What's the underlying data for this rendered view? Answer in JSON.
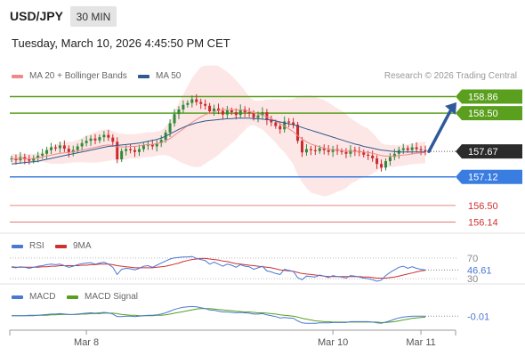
{
  "header": {
    "symbol": "USD/JPY",
    "interval": "30 MIN",
    "datetime": "Tuesday, March 10, 2026 4:45:50 PM CET"
  },
  "legend": {
    "ma20": "MA 20 + Bollinger Bands",
    "ma50": "MA 50",
    "credit": "Research © 2026 Trading Central"
  },
  "colors": {
    "resistance": "#5aa01e",
    "support": "#3a7de0",
    "target": "#e06060",
    "up_candle": "#2f8a3a",
    "down_candle": "#cc2a2a",
    "ma20": "#f08a8a",
    "ma50": "#2f5a8f",
    "bollinger_fill": "#fde2e2",
    "rsi": "#4a78d4",
    "rsi_ma": "#d03030",
    "macd": "#4a78d4",
    "macd_signal": "#56a01e",
    "current": "#333333",
    "arrow": "#2f5a9a"
  },
  "chart_data": [
    {
      "type": "candlestick",
      "name": "price",
      "ylim": [
        155.9,
        159.1
      ],
      "x_ticks": [
        "Mar 8",
        "Mar 10",
        "Mar 11"
      ],
      "levels": [
        {
          "value": 158.86,
          "label": "158.86",
          "kind": "resistance"
        },
        {
          "value": 158.5,
          "label": "158.50",
          "kind": "resistance"
        },
        {
          "value": 157.67,
          "label": "157.67",
          "kind": "current"
        },
        {
          "value": 157.12,
          "label": "157.12",
          "kind": "support"
        },
        {
          "value": 156.5,
          "label": "156.50",
          "kind": "target"
        },
        {
          "value": 156.14,
          "label": "156.14",
          "kind": "target"
        }
      ],
      "close": [
        157.52,
        157.48,
        157.55,
        157.5,
        157.47,
        157.53,
        157.58,
        157.62,
        157.7,
        157.76,
        157.74,
        157.8,
        157.73,
        157.65,
        157.7,
        157.78,
        157.85,
        157.9,
        157.95,
        157.91,
        157.98,
        158.03,
        157.97,
        157.88,
        157.5,
        157.68,
        157.72,
        157.7,
        157.66,
        157.72,
        157.8,
        157.82,
        157.78,
        157.85,
        157.92,
        158.08,
        158.28,
        158.48,
        158.58,
        158.68,
        158.72,
        158.8,
        158.74,
        158.7,
        158.66,
        158.54,
        158.6,
        158.55,
        158.47,
        158.56,
        158.52,
        158.46,
        158.58,
        158.52,
        158.5,
        158.4,
        158.45,
        158.52,
        158.35,
        158.3,
        158.22,
        158.15,
        158.32,
        158.3,
        158.25,
        157.9,
        157.65,
        157.72,
        157.7,
        157.68,
        157.74,
        157.7,
        157.66,
        157.72,
        157.68,
        157.66,
        157.62,
        157.7,
        157.68,
        157.65,
        157.6,
        157.58,
        157.52,
        157.4,
        157.32,
        157.46,
        157.55,
        157.62,
        157.7,
        157.74,
        157.7,
        157.76,
        157.72,
        157.7,
        157.67
      ],
      "ma20": [
        157.52,
        157.51,
        157.52,
        157.52,
        157.51,
        157.52,
        157.53,
        157.55,
        157.57,
        157.59,
        157.61,
        157.63,
        157.64,
        157.65,
        157.66,
        157.68,
        157.7,
        157.72,
        157.74,
        157.76,
        157.78,
        157.8,
        157.81,
        157.8,
        157.77,
        157.77,
        157.77,
        157.78,
        157.78,
        157.79,
        157.81,
        157.82,
        157.82,
        157.84,
        157.86,
        157.9,
        157.95,
        158.02,
        158.09,
        158.16,
        158.23,
        158.3,
        158.36,
        158.42,
        158.47,
        158.5,
        158.53,
        158.56,
        158.57,
        158.58,
        158.58,
        158.57,
        158.57,
        158.56,
        158.54,
        158.51,
        158.48,
        158.46,
        158.42,
        158.38,
        158.33,
        158.27,
        158.22,
        158.16,
        158.1,
        158.01,
        157.94,
        157.88,
        157.83,
        157.8,
        157.77,
        157.74,
        157.72,
        157.71,
        157.7,
        157.69,
        157.68,
        157.68,
        157.67,
        157.67,
        157.66,
        157.65,
        157.63,
        157.61,
        157.58,
        157.57,
        157.57,
        157.57,
        157.58,
        157.59,
        157.6,
        157.62,
        157.63,
        157.64,
        157.65
      ],
      "ma50": [
        157.4,
        157.41,
        157.42,
        157.43,
        157.44,
        157.45,
        157.46,
        157.48,
        157.5,
        157.52,
        157.54,
        157.56,
        157.58,
        157.6,
        157.62,
        157.64,
        157.66,
        157.68,
        157.7,
        157.72,
        157.74,
        157.76,
        157.78,
        157.79,
        157.8,
        157.81,
        157.82,
        157.83,
        157.84,
        157.85,
        157.87,
        157.89,
        157.91,
        157.93,
        157.96,
        158.0,
        158.05,
        158.1,
        158.15,
        158.19,
        158.23,
        158.26,
        158.29,
        158.31,
        158.33,
        158.34,
        158.35,
        158.36,
        158.37,
        158.38,
        158.38,
        158.39,
        158.39,
        158.39,
        158.39,
        158.38,
        158.38,
        158.37,
        158.36,
        158.35,
        158.33,
        158.31,
        158.29,
        158.27,
        158.25,
        158.22,
        158.19,
        158.16,
        158.13,
        158.1,
        158.07,
        158.04,
        158.01,
        157.98,
        157.95,
        157.92,
        157.89,
        157.86,
        157.83,
        157.81,
        157.78,
        157.76,
        157.74,
        157.72,
        157.7,
        157.69,
        157.68,
        157.67,
        157.66,
        157.66,
        157.66,
        157.66,
        157.66,
        157.66,
        157.66
      ]
    },
    {
      "type": "line",
      "name": "RSI",
      "legend": [
        "RSI",
        "9MA"
      ],
      "ylim": [
        25,
        80
      ],
      "y_ticks": [
        {
          "value": 70,
          "label": "70"
        },
        {
          "value": 30,
          "label": "30"
        }
      ],
      "last_value": "46.61",
      "series": [
        {
          "name": "RSI",
          "values": [
            52,
            51,
            53,
            52,
            50,
            52,
            54,
            55,
            57,
            58,
            57,
            58,
            55,
            52,
            54,
            57,
            59,
            60,
            61,
            58,
            60,
            62,
            58,
            52,
            38,
            48,
            50,
            49,
            47,
            50,
            54,
            55,
            52,
            56,
            60,
            64,
            68,
            70,
            71,
            72,
            72,
            73,
            69,
            67,
            65,
            58,
            62,
            58,
            54,
            58,
            56,
            52,
            57,
            54,
            53,
            48,
            51,
            54,
            45,
            43,
            40,
            38,
            48,
            46,
            44,
            32,
            28,
            35,
            34,
            33,
            37,
            35,
            32,
            36,
            34,
            33,
            31,
            36,
            35,
            33,
            31,
            30,
            28,
            25,
            27,
            36,
            42,
            47,
            52,
            54,
            50,
            53,
            50,
            48,
            46.61
          ]
        },
        {
          "name": "9MA",
          "values": [
            53,
            52,
            52,
            52,
            52,
            52,
            52,
            53,
            53,
            54,
            54,
            55,
            55,
            55,
            55,
            55,
            56,
            56,
            57,
            57,
            58,
            58,
            58,
            57,
            55,
            54,
            53,
            52,
            51,
            51,
            51,
            51,
            51,
            52,
            53,
            54,
            56,
            58,
            60,
            63,
            65,
            67,
            68,
            69,
            69,
            68,
            67,
            66,
            64,
            63,
            61,
            59,
            58,
            57,
            56,
            55,
            54,
            53,
            52,
            51,
            49,
            47,
            46,
            45,
            44,
            42,
            40,
            39,
            38,
            37,
            36,
            35,
            34,
            34,
            34,
            34,
            34,
            34,
            34,
            34,
            33,
            33,
            32,
            31,
            31,
            31,
            32,
            33,
            35,
            37,
            39,
            41,
            43,
            45,
            46
          ]
        }
      ]
    },
    {
      "type": "line",
      "name": "MACD",
      "legend": [
        "MACD",
        "MACD Signal"
      ],
      "ylim": [
        -0.3,
        0.27
      ],
      "last_value": "-0.01",
      "series": [
        {
          "name": "MACD",
          "values": [
            0.0,
            0.0,
            0.0,
            0.0,
            0.01,
            0.01,
            0.01,
            0.02,
            0.03,
            0.04,
            0.04,
            0.05,
            0.04,
            0.03,
            0.03,
            0.04,
            0.05,
            0.06,
            0.07,
            0.06,
            0.07,
            0.08,
            0.07,
            0.04,
            -0.02,
            -0.02,
            -0.01,
            -0.01,
            -0.02,
            -0.01,
            0.0,
            0.01,
            0.01,
            0.02,
            0.04,
            0.07,
            0.11,
            0.15,
            0.18,
            0.2,
            0.21,
            0.22,
            0.21,
            0.19,
            0.17,
            0.14,
            0.13,
            0.11,
            0.09,
            0.09,
            0.08,
            0.07,
            0.08,
            0.07,
            0.06,
            0.04,
            0.04,
            0.05,
            0.02,
            0.0,
            -0.02,
            -0.05,
            -0.04,
            -0.05,
            -0.06,
            -0.12,
            -0.17,
            -0.18,
            -0.18,
            -0.18,
            -0.17,
            -0.17,
            -0.17,
            -0.16,
            -0.16,
            -0.16,
            -0.16,
            -0.14,
            -0.14,
            -0.14,
            -0.14,
            -0.14,
            -0.15,
            -0.17,
            -0.18,
            -0.15,
            -0.12,
            -0.08,
            -0.05,
            -0.03,
            -0.02,
            -0.01,
            -0.01,
            -0.01,
            -0.01
          ]
        },
        {
          "name": "MACD Signal",
          "values": [
            0.0,
            0.0,
            0.0,
            0.0,
            0.0,
            0.0,
            0.01,
            0.01,
            0.01,
            0.02,
            0.02,
            0.03,
            0.03,
            0.03,
            0.03,
            0.03,
            0.04,
            0.04,
            0.05,
            0.05,
            0.05,
            0.06,
            0.06,
            0.06,
            0.05,
            0.03,
            0.02,
            0.01,
            0.01,
            0.0,
            0.0,
            0.0,
            0.0,
            0.01,
            0.01,
            0.02,
            0.04,
            0.06,
            0.08,
            0.1,
            0.12,
            0.14,
            0.16,
            0.17,
            0.17,
            0.17,
            0.16,
            0.15,
            0.14,
            0.13,
            0.12,
            0.11,
            0.1,
            0.09,
            0.09,
            0.08,
            0.07,
            0.07,
            0.06,
            0.05,
            0.04,
            0.02,
            0.01,
            0.0,
            -0.01,
            -0.03,
            -0.06,
            -0.08,
            -0.1,
            -0.12,
            -0.13,
            -0.14,
            -0.14,
            -0.15,
            -0.15,
            -0.15,
            -0.15,
            -0.15,
            -0.15,
            -0.15,
            -0.15,
            -0.15,
            -0.15,
            -0.15,
            -0.16,
            -0.16,
            -0.15,
            -0.14,
            -0.12,
            -0.1,
            -0.08,
            -0.06,
            -0.05,
            -0.04,
            -0.03
          ]
        }
      ]
    }
  ]
}
